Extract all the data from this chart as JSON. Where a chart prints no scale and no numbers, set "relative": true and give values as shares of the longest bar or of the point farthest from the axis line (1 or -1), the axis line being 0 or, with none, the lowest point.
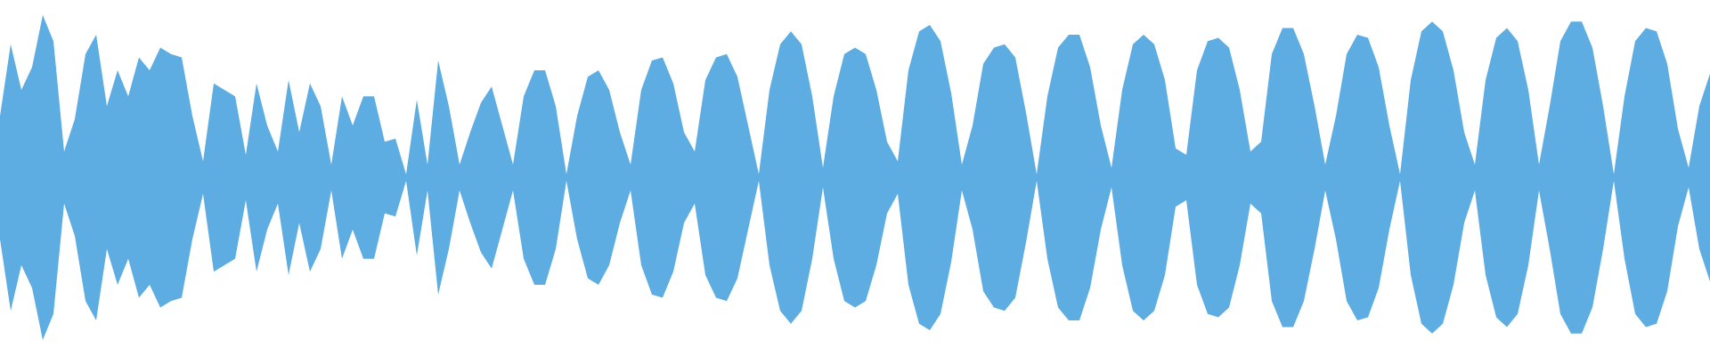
{
  "chart_data": {
    "type": "area",
    "relative": true,
    "ref_lines": [
      {
        "axis": "y",
        "value": 0,
        "color": "#5dade2"
      }
    ],
    "categories": [
      null,
      null,
      null,
      null,
      null,
      null,
      null,
      null,
      null,
      null,
      null,
      null,
      null,
      null,
      null,
      null,
      null,
      null,
      null,
      null,
      null,
      null,
      null,
      null,
      null,
      null,
      null,
      null,
      null,
      null,
      null,
      null,
      null,
      null,
      null,
      null,
      null,
      null,
      null,
      null,
      null,
      null,
      null,
      null,
      null,
      null,
      null,
      null,
      null,
      null,
      null,
      null,
      null,
      null,
      null,
      null,
      null,
      null,
      null,
      null,
      null,
      null,
      null,
      null,
      null,
      null,
      null,
      null,
      null,
      null,
      null,
      null,
      null,
      null,
      null,
      null,
      null,
      null,
      null,
      null,
      null,
      null,
      null,
      null,
      null,
      null,
      null,
      null,
      null,
      null,
      null,
      null,
      null,
      null,
      null,
      null,
      null,
      null,
      null,
      null,
      null,
      null,
      null,
      null,
      null,
      null,
      null,
      null,
      null,
      null,
      null,
      null,
      null,
      null,
      null,
      null,
      null,
      null,
      null,
      null,
      null,
      null,
      null,
      null,
      null,
      null,
      null,
      null,
      null,
      null,
      null,
      null,
      null,
      null,
      null,
      null,
      null,
      null,
      null,
      null,
      null,
      null,
      null,
      null,
      null,
      null,
      null,
      null,
      null,
      null,
      null,
      null,
      null,
      null,
      null,
      null,
      null,
      null,
      null,
      null,
      null
    ],
    "series": [
      {
        "color": "#5dade2",
        "values": [
          0.38,
          0.82,
          0.54,
          0.68,
          1.0,
          0.84,
          0.16,
          0.36,
          0.76,
          0.88,
          0.44,
          0.66,
          0.5,
          0.74,
          0.66,
          0.8,
          0.76,
          0.74,
          0.38,
          0.1,
          0.58,
          0.54,
          0.5,
          0.14,
          0.58,
          0.32,
          0.16,
          0.6,
          0.28,
          0.58,
          0.44,
          0.08,
          0.5,
          0.32,
          0.5,
          0.5,
          0.22,
          0.24,
          0.02,
          0.48,
          0.08,
          0.72,
          0.44,
          0.08,
          0.28,
          0.46,
          0.56,
          0.32,
          0.08,
          0.5,
          0.66,
          0.66,
          0.44,
          0.02,
          0.38,
          0.62,
          0.66,
          0.54,
          0.28,
          0.08,
          0.54,
          0.72,
          0.74,
          0.58,
          0.28,
          0.16,
          0.6,
          0.74,
          0.76,
          0.62,
          0.32,
          0.02,
          0.54,
          0.82,
          0.9,
          0.82,
          0.5,
          0.06,
          0.5,
          0.76,
          0.8,
          0.76,
          0.54,
          0.22,
          0.1,
          0.66,
          0.9,
          0.94,
          0.84,
          0.52,
          0.08,
          0.32,
          0.7,
          0.8,
          0.82,
          0.74,
          0.4,
          0.02,
          0.5,
          0.8,
          0.88,
          0.88,
          0.68,
          0.32,
          0.06,
          0.54,
          0.82,
          0.88,
          0.82,
          0.6,
          0.18,
          0.14,
          0.66,
          0.84,
          0.86,
          0.8,
          0.54,
          0.16,
          0.22,
          0.76,
          0.92,
          0.92,
          0.76,
          0.44,
          0.08,
          0.38,
          0.76,
          0.88,
          0.86,
          0.68,
          0.32,
          0.02,
          0.6,
          0.9,
          0.96,
          0.9,
          0.66,
          0.28,
          0.08,
          0.6,
          0.86,
          0.92,
          0.84,
          0.54,
          0.08,
          0.44,
          0.84,
          0.96,
          0.96,
          0.8,
          0.44,
          0.02,
          0.5,
          0.84,
          0.92,
          0.9,
          0.7,
          0.3,
          0.06,
          0.44,
          0.64
        ]
      },
      {
        "color": "#5dade2",
        "values": [
          -0.38,
          -0.82,
          -0.54,
          -0.68,
          -1.0,
          -0.84,
          -0.16,
          -0.36,
          -0.76,
          -0.88,
          -0.44,
          -0.66,
          -0.5,
          -0.74,
          -0.66,
          -0.8,
          -0.76,
          -0.74,
          -0.38,
          -0.1,
          -0.58,
          -0.54,
          -0.5,
          -0.14,
          -0.58,
          -0.32,
          -0.16,
          -0.6,
          -0.28,
          -0.58,
          -0.44,
          -0.08,
          -0.5,
          -0.32,
          -0.5,
          -0.5,
          -0.22,
          -0.24,
          -0.02,
          -0.48,
          -0.08,
          -0.72,
          -0.44,
          -0.08,
          -0.28,
          -0.46,
          -0.56,
          -0.32,
          -0.08,
          -0.5,
          -0.66,
          -0.66,
          -0.44,
          -0.02,
          -0.38,
          -0.62,
          -0.66,
          -0.54,
          -0.28,
          -0.08,
          -0.54,
          -0.72,
          -0.74,
          -0.58,
          -0.28,
          -0.16,
          -0.6,
          -0.74,
          -0.76,
          -0.62,
          -0.32,
          -0.02,
          -0.54,
          -0.82,
          -0.9,
          -0.82,
          -0.5,
          -0.06,
          -0.5,
          -0.76,
          -0.8,
          -0.76,
          -0.54,
          -0.22,
          -0.1,
          -0.66,
          -0.9,
          -0.94,
          -0.84,
          -0.52,
          -0.08,
          -0.32,
          -0.7,
          -0.8,
          -0.82,
          -0.74,
          -0.4,
          -0.02,
          -0.5,
          -0.8,
          -0.88,
          -0.88,
          -0.68,
          -0.32,
          -0.06,
          -0.54,
          -0.82,
          -0.88,
          -0.82,
          -0.6,
          -0.18,
          -0.14,
          -0.66,
          -0.84,
          -0.86,
          -0.8,
          -0.54,
          -0.16,
          -0.22,
          -0.76,
          -0.92,
          -0.92,
          -0.76,
          -0.44,
          -0.08,
          -0.38,
          -0.76,
          -0.88,
          -0.86,
          -0.68,
          -0.32,
          -0.02,
          -0.6,
          -0.9,
          -0.96,
          -0.9,
          -0.66,
          -0.28,
          -0.08,
          -0.6,
          -0.86,
          -0.92,
          -0.84,
          -0.54,
          -0.08,
          -0.44,
          -0.84,
          -0.96,
          -0.96,
          -0.8,
          -0.44,
          -0.02,
          -0.5,
          -0.84,
          -0.92,
          -0.9,
          -0.7,
          -0.3,
          -0.06,
          -0.44,
          -0.64
        ]
      }
    ]
  }
}
